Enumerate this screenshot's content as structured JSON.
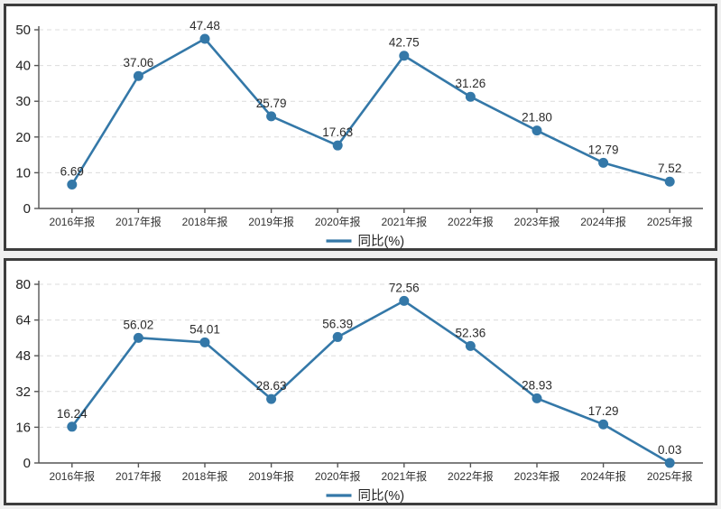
{
  "page": {
    "background_color": "#f0f0f0",
    "panel_border_color": "#3d3d3d"
  },
  "legend": {
    "label": "同比(%)"
  },
  "chart_data": [
    {
      "type": "line",
      "name": "yoy-growth-chart-top",
      "title": "",
      "xlabel": "",
      "ylabel": "",
      "legend": "同比(%)",
      "legend_position": "bottom-center",
      "grid": true,
      "categories": [
        "2016年报",
        "2017年报",
        "2018年报",
        "2019年报",
        "2020年报",
        "2021年报",
        "2022年报",
        "2023年报",
        "2024年报",
        "2025年报"
      ],
      "values": [
        6.69,
        37.06,
        47.48,
        25.79,
        17.63,
        42.75,
        31.26,
        21.8,
        12.79,
        7.52
      ],
      "value_labels": [
        "6.69",
        "37.06",
        "47.48",
        "25.79",
        "17.63",
        "42.75",
        "31.26",
        "21.80",
        "12.79",
        "7.52"
      ],
      "ylim": [
        0,
        50
      ],
      "yticks": [
        0,
        10,
        20,
        30,
        40,
        50
      ],
      "line_color": "#3478a8",
      "marker_color": "#3478a8",
      "label_color": "#2b2b2b",
      "axis_color": "#555555",
      "grid_color": "#dcdcdc"
    },
    {
      "type": "line",
      "name": "yoy-growth-chart-bottom",
      "title": "",
      "xlabel": "",
      "ylabel": "",
      "legend": "同比(%)",
      "legend_position": "bottom-center",
      "grid": true,
      "categories": [
        "2016年报",
        "2017年报",
        "2018年报",
        "2019年报",
        "2020年报",
        "2021年报",
        "2022年报",
        "2023年报",
        "2024年报",
        "2025年报"
      ],
      "values": [
        16.24,
        56.02,
        54.01,
        28.63,
        56.39,
        72.56,
        52.36,
        28.93,
        17.29,
        0.03
      ],
      "value_labels": [
        "16.24",
        "56.02",
        "54.01",
        "28.63",
        "56.39",
        "72.56",
        "52.36",
        "28.93",
        "17.29",
        "0.03"
      ],
      "ylim": [
        0,
        80
      ],
      "yticks": [
        0,
        16,
        32,
        48,
        64,
        80
      ],
      "line_color": "#3478a8",
      "marker_color": "#3478a8",
      "label_color": "#2b2b2b",
      "axis_color": "#555555",
      "grid_color": "#dcdcdc"
    }
  ]
}
